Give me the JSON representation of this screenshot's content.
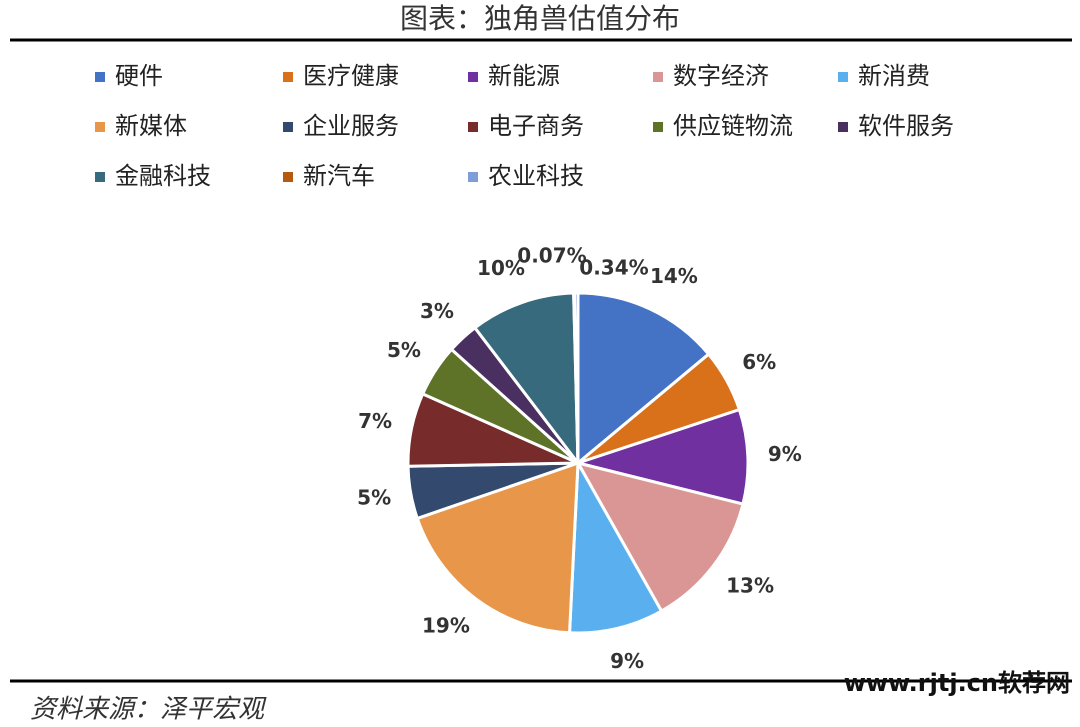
{
  "chart_data": {
    "type": "pie",
    "title": "图表：独角兽估值分布",
    "categories": [
      "硬件",
      "医疗健康",
      "新能源",
      "数字经济",
      "新消费",
      "新媒体",
      "企业服务",
      "电子商务",
      "供应链物流",
      "软件服务",
      "金融科技",
      "新汽车",
      "农业科技"
    ],
    "values": [
      14,
      6,
      9,
      13,
      9,
      19,
      5,
      7,
      5,
      3,
      10,
      0.07,
      0.34
    ],
    "value_labels": [
      "14%",
      "6%",
      "9%",
      "13%",
      "9%",
      "19%",
      "5%",
      "7%",
      "5%",
      "3%",
      "10%",
      "0.07%",
      "0.34%"
    ],
    "colors": [
      "#4472c4",
      "#d9711b",
      "#7030a0",
      "#d99694",
      "#5aafef",
      "#e8964a",
      "#34496e",
      "#772b2b",
      "#5e7328",
      "#4a3060",
      "#376a7c",
      "#b35a0e",
      "#7d9ed8"
    ],
    "legend": "top"
  },
  "source": "资料来源：泽平宏观",
  "watermark": "www.rjtj.cn软荐网"
}
